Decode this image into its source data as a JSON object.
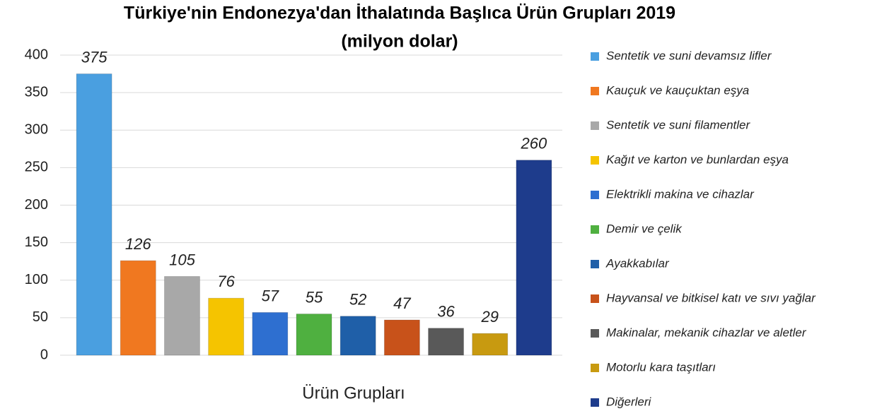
{
  "chart_data": {
    "type": "bar",
    "title": "Türkiye'nin Endonezya'dan  İthalatında Başlıca Ürün Grupları 2019",
    "subtitle": "(milyon dolar)",
    "x_label": "Ürün Grupları",
    "categories": [
      "Sentetik ve suni devamsız lifler",
      "Kauçuk ve kauçuktan eşya",
      "Sentetik ve suni filamentler",
      "Kağıt ve karton ve bunlardan eşya",
      "Elektrikli makina ve cihazlar",
      "Demir ve çelik",
      "Ayakkabılar",
      "Hayvansal ve bitkisel katı ve sıvı yağlar",
      "Makinalar, mekanik cihazlar ve aletler",
      "Motorlu kara taşıtları",
      "Diğerleri"
    ],
    "values": [
      375,
      126,
      105,
      76,
      57,
      55,
      52,
      47,
      36,
      29,
      260
    ],
    "colors": [
      "#4a9fe0",
      "#f07820",
      "#a8a8a8",
      "#f5c400",
      "#2e6fd0",
      "#4fb040",
      "#1f5fa8",
      "#c8521a",
      "#595959",
      "#c89a10",
      "#1e3c8c"
    ],
    "ylim": [
      0,
      400
    ],
    "yticks": [
      0,
      50,
      100,
      150,
      200,
      250,
      300,
      350,
      400
    ],
    "grid": true,
    "legend": "right"
  }
}
